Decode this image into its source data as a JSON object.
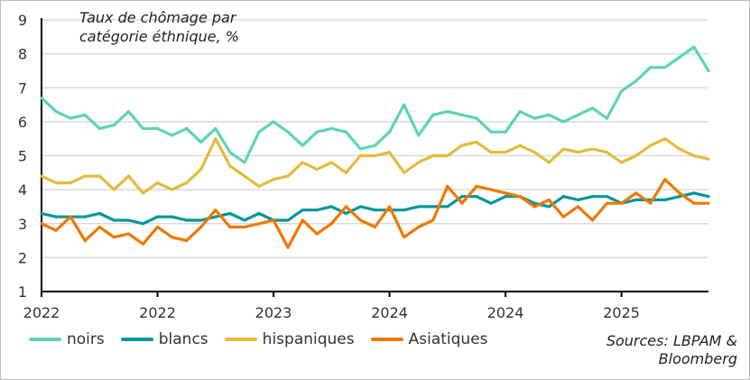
{
  "chart_data": {
    "type": "line",
    "title": "Taux de chômage par catégorie éthnique, %",
    "xlabel": "",
    "ylabel": "",
    "ylim": [
      1,
      9
    ],
    "yticks": [
      "1",
      "2",
      "3",
      "4",
      "5",
      "6",
      "7",
      "8",
      "9"
    ],
    "xtick_labels": [
      "2022",
      "2022",
      "2023",
      "2024",
      "2024",
      "2025"
    ],
    "xtick_every_points": 8,
    "grid": true,
    "legend_placement": "bottom",
    "series": [
      {
        "name": "noirs",
        "color": "#5dd3b6",
        "values": [
          6.7,
          6.3,
          6.1,
          6.2,
          5.8,
          5.9,
          6.3,
          5.8,
          5.8,
          5.6,
          5.8,
          5.4,
          5.8,
          5.1,
          4.8,
          5.7,
          6.0,
          5.7,
          5.3,
          5.7,
          5.8,
          5.7,
          5.2,
          5.3,
          5.7,
          6.5,
          5.6,
          6.2,
          6.3,
          6.2,
          6.1,
          5.7,
          5.7,
          6.3,
          6.1,
          6.2,
          6.0,
          6.2,
          6.4,
          6.1,
          6.9,
          7.2,
          7.6,
          7.6,
          7.9,
          8.2,
          7.5
        ]
      },
      {
        "name": "blancs",
        "color": "#00979b",
        "values": [
          3.3,
          3.2,
          3.2,
          3.2,
          3.3,
          3.1,
          3.1,
          3.0,
          3.2,
          3.2,
          3.1,
          3.1,
          3.2,
          3.3,
          3.1,
          3.3,
          3.1,
          3.1,
          3.4,
          3.4,
          3.5,
          3.3,
          3.5,
          3.4,
          3.4,
          3.4,
          3.5,
          3.5,
          3.5,
          3.8,
          3.8,
          3.6,
          3.8,
          3.8,
          3.6,
          3.5,
          3.8,
          3.7,
          3.8,
          3.8,
          3.6,
          3.7,
          3.7,
          3.7,
          3.8,
          3.9,
          3.8
        ]
      },
      {
        "name": "hispaniques",
        "color": "#e3bb3d",
        "values": [
          4.4,
          4.2,
          4.2,
          4.4,
          4.4,
          4.0,
          4.4,
          3.9,
          4.2,
          4.0,
          4.2,
          4.6,
          5.5,
          4.7,
          4.4,
          4.1,
          4.3,
          4.4,
          4.8,
          4.6,
          4.8,
          4.5,
          5.0,
          5.0,
          5.1,
          4.5,
          4.8,
          5.0,
          5.0,
          5.3,
          5.4,
          5.1,
          5.1,
          5.3,
          5.1,
          4.8,
          5.2,
          5.1,
          5.2,
          5.1,
          4.8,
          5.0,
          5.3,
          5.5,
          5.2,
          5.0,
          4.9
        ]
      },
      {
        "name": "Asiatiques",
        "color": "#f07800",
        "values": [
          3.0,
          2.8,
          3.2,
          2.5,
          2.9,
          2.6,
          2.7,
          2.4,
          2.9,
          2.6,
          2.5,
          2.9,
          3.4,
          2.9,
          2.9,
          3.0,
          3.1,
          2.3,
          3.1,
          2.7,
          3.0,
          3.5,
          3.1,
          2.9,
          3.5,
          2.6,
          2.9,
          3.1,
          4.1,
          3.6,
          4.1,
          4.0,
          3.9,
          3.8,
          3.5,
          3.7,
          3.2,
          3.5,
          3.1,
          3.6,
          3.6,
          3.9,
          3.6,
          4.3,
          3.9,
          3.6,
          3.6
        ]
      }
    ],
    "sources": "Sources: LBPAM & Bloomberg"
  }
}
